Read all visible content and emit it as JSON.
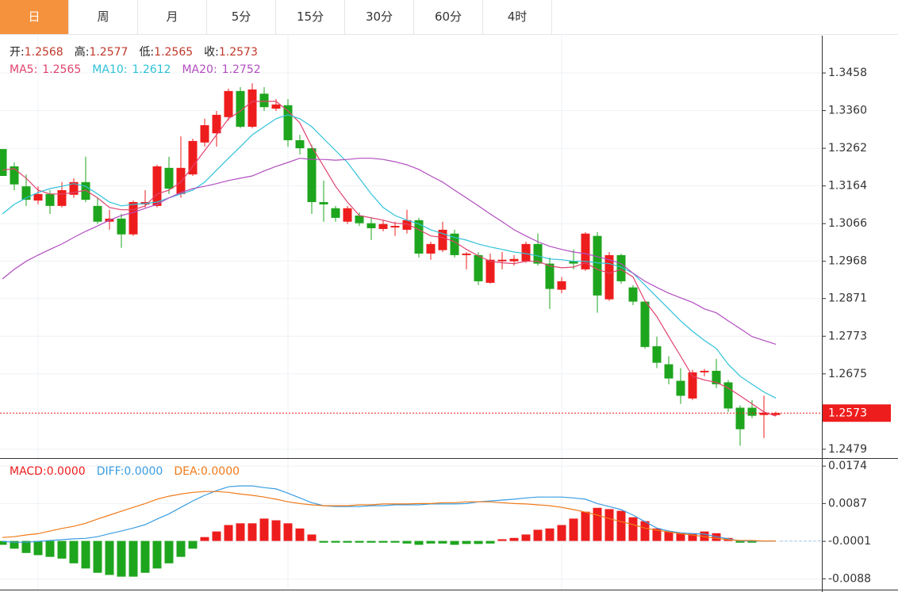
{
  "tabs": [
    "日",
    "周",
    "月",
    "5分",
    "15分",
    "30分",
    "60分",
    "4时"
  ],
  "active_tab": 0,
  "ohlc_labels": [
    "开:",
    "高:",
    "低:",
    "收:"
  ],
  "chart_data": [
    {
      "type": "candlestick",
      "categories": [
        null,
        null,
        null,
        null,
        null,
        null,
        null,
        null,
        null,
        null,
        null,
        null,
        null,
        null,
        null,
        null,
        null,
        null,
        null,
        null,
        null,
        null,
        null,
        null,
        null,
        null,
        null,
        null,
        null,
        null,
        null,
        null,
        null,
        null,
        null,
        null,
        null,
        null,
        null,
        null,
        null,
        null,
        null,
        null,
        null,
        null,
        null,
        null,
        null,
        null,
        null,
        null,
        null,
        null,
        null,
        null,
        null,
        null,
        null,
        null,
        null,
        null,
        null,
        null,
        null,
        null
      ],
      "open": [
        1.326,
        1.3215,
        1.3163,
        1.3126,
        1.3143,
        1.3112,
        1.3141,
        1.3174,
        1.3112,
        1.3071,
        1.3079,
        1.3038,
        1.3116,
        1.3112,
        1.3211,
        1.3143,
        1.3194,
        1.3277,
        1.3301,
        1.3343,
        1.3411,
        1.3318,
        1.3404,
        1.3365,
        1.3374,
        1.3283,
        1.3262,
        1.3122,
        1.3106,
        1.3071,
        1.3087,
        1.3067,
        1.3052,
        1.3056,
        1.305,
        1.3075,
        1.2988,
        1.2997,
        1.304,
        1.2984,
        1.2984,
        1.2912,
        1.2968,
        1.2968,
        1.2968,
        1.3013,
        1.2962,
        1.2894,
        1.2968,
        1.2947,
        1.3034,
        1.2869,
        1.2984,
        1.29,
        1.2863,
        1.2747,
        1.27,
        1.2657,
        1.2611,
        1.2679,
        1.2683,
        1.2653,
        1.2587,
        1.2587,
        1.2568,
        1.2568
      ],
      "high": [
        1.326,
        1.3225,
        1.3194,
        1.3163,
        1.3153,
        1.3174,
        1.3184,
        1.324,
        1.3133,
        1.3102,
        1.3091,
        1.3126,
        1.3153,
        1.3219,
        1.324,
        1.3293,
        1.3287,
        1.3339,
        1.3359,
        1.3417,
        1.3421,
        1.3431,
        1.3421,
        1.339,
        1.339,
        1.3297,
        1.3271,
        1.3178,
        1.3112,
        1.3112,
        1.3095,
        1.3081,
        1.3075,
        1.3071,
        1.3102,
        1.3081,
        1.3019,
        1.3071,
        1.305,
        1.2992,
        1.2992,
        1.2988,
        1.2992,
        1.2984,
        1.3019,
        1.304,
        1.2978,
        1.2927,
        1.2999,
        1.3044,
        1.3044,
        1.2992,
        1.2988,
        1.2906,
        1.2865,
        1.2772,
        1.2721,
        1.269,
        1.2686,
        1.2688,
        1.2714,
        1.2659,
        1.2593,
        1.2607,
        1.2618,
        1.2577
      ],
      "low": [
        1.319,
        1.3153,
        1.3112,
        1.3116,
        1.3091,
        1.3108,
        1.3133,
        1.3122,
        1.3065,
        1.305,
        1.3003,
        1.3034,
        1.3108,
        1.3108,
        1.3143,
        1.3133,
        1.319,
        1.3266,
        1.3266,
        1.3334,
        1.3314,
        1.3314,
        1.3359,
        1.3359,
        1.3266,
        1.3246,
        1.3091,
        1.3071,
        1.3071,
        1.3065,
        1.306,
        1.3023,
        1.3046,
        1.3034,
        1.304,
        1.2978,
        1.2972,
        1.2992,
        1.2978,
        1.2947,
        1.2906,
        1.291,
        1.2947,
        1.2957,
        1.2964,
        1.2957,
        1.2844,
        1.2885,
        1.2947,
        1.2943,
        1.2834,
        1.2865,
        1.291,
        1.2854,
        1.2741,
        1.269,
        1.2648,
        1.2597,
        1.2607,
        1.2669,
        1.2638,
        1.2576,
        1.2488,
        1.256,
        1.2508,
        1.2565
      ],
      "close": [
        1.319,
        1.3168,
        1.3128,
        1.3143,
        1.3112,
        1.3153,
        1.3174,
        1.3128,
        1.3071,
        1.3079,
        1.3038,
        1.3122,
        1.3122,
        1.3215,
        1.3157,
        1.3211,
        1.3281,
        1.3322,
        1.3349,
        1.3411,
        1.3318,
        1.3415,
        1.3369,
        1.3376,
        1.3283,
        1.3262,
        1.3122,
        1.3116,
        1.3081,
        1.3106,
        1.3067,
        1.3054,
        1.3065,
        1.306,
        1.3075,
        1.2988,
        1.3013,
        1.305,
        1.2984,
        1.2988,
        1.2916,
        1.2972,
        1.2972,
        1.2974,
        1.3013,
        1.2962,
        1.2896,
        1.2916,
        1.2962,
        1.304,
        1.2879,
        1.2984,
        1.2916,
        1.2863,
        1.2745,
        1.2704,
        1.2663,
        1.2618,
        1.2679,
        1.2683,
        1.2648,
        1.2585,
        1.2531,
        1.2566,
        1.2574,
        1.2573
      ],
      "up_color": "#ee1d1d",
      "down_color": "#1ea51e",
      "series": [
        {
          "name": "MA5:",
          "color": "#e0436e",
          "values": [
            1.3205,
            1.3209,
            1.3184,
            1.3153,
            1.3143,
            1.3143,
            1.3147,
            1.3153,
            1.3133,
            1.3108,
            1.3102,
            1.3102,
            1.3112,
            1.3143,
            1.3153,
            1.3174,
            1.3215,
            1.3256,
            1.3297,
            1.3339,
            1.3359,
            1.3384,
            1.3384,
            1.3384,
            1.3359,
            1.3328,
            1.3266,
            1.3215,
            1.3163,
            1.3122,
            1.3087,
            1.3081,
            1.3075,
            1.3067,
            1.3065,
            1.305,
            1.3034,
            1.303,
            1.3019,
            1.2999,
            1.2982,
            1.2968,
            1.2964,
            1.2962,
            1.2968,
            1.2968,
            1.2956,
            1.2951,
            1.2953,
            1.2964,
            1.2947,
            1.2937,
            1.2947,
            1.2927,
            1.2865,
            1.2824,
            1.2772,
            1.2721,
            1.2669,
            1.2659,
            1.2653,
            1.2638,
            1.2618,
            1.2597,
            1.2576,
            1.2565
          ]
        },
        {
          "name": "MA10:",
          "color": "#2fc2d8",
          "values": [
            1.3091,
            1.3116,
            1.3133,
            1.3147,
            1.3157,
            1.3163,
            1.317,
            1.3163,
            1.3143,
            1.3122,
            1.3112,
            1.3116,
            1.3118,
            1.3122,
            1.3133,
            1.3143,
            1.3153,
            1.3174,
            1.3205,
            1.3236,
            1.3266,
            1.3297,
            1.3318,
            1.3339,
            1.3349,
            1.3339,
            1.3318,
            1.3287,
            1.3256,
            1.3225,
            1.3184,
            1.3143,
            1.3108,
            1.3087,
            1.3075,
            1.3065,
            1.305,
            1.304,
            1.303,
            1.3023,
            1.3013,
            1.3005,
            1.2999,
            1.2992,
            1.2988,
            1.2982,
            1.2974,
            1.2972,
            1.2968,
            1.2968,
            1.2964,
            1.2962,
            1.2953,
            1.2937,
            1.2906,
            1.2875,
            1.2844,
            1.2813,
            1.2786,
            1.2762,
            1.2741,
            1.27,
            1.2669,
            1.2648,
            1.2628,
            1.2612
          ]
        },
        {
          "name": "MA20:",
          "color": "#b24ec0",
          "values": [
            1.2922,
            1.2947,
            1.2968,
            1.2984,
            1.2999,
            1.3013,
            1.303,
            1.3046,
            1.306,
            1.3075,
            1.3087,
            1.3095,
            1.3106,
            1.3116,
            1.3133,
            1.3147,
            1.3157,
            1.3163,
            1.317,
            1.3178,
            1.3184,
            1.319,
            1.3203,
            1.3215,
            1.3225,
            1.3236,
            1.3233,
            1.3233,
            1.3231,
            1.3233,
            1.3236,
            1.3236,
            1.3233,
            1.3227,
            1.3219,
            1.3207,
            1.319,
            1.3174,
            1.3153,
            1.3133,
            1.3112,
            1.3091,
            1.3071,
            1.305,
            1.3034,
            1.3019,
            1.3007,
            1.2999,
            1.2992,
            1.2988,
            1.298,
            1.2972,
            1.2962,
            1.2937,
            1.2916,
            1.29,
            1.2885,
            1.2873,
            1.2861,
            1.2844,
            1.2834,
            1.2813,
            1.2793,
            1.2772,
            1.2762,
            1.2752
          ]
        }
      ],
      "ylim": [
        1.2456,
        1.3555
      ],
      "yticks": [
        1.3458,
        {
          "value": 1.336,
          "label": "1.3360"
        },
        1.3262,
        1.3164,
        1.3066,
        1.2968,
        1.2871,
        1.2773,
        1.2675,
        1.2479
      ],
      "grid": true,
      "last_price_line": true
    },
    {
      "type": "macd",
      "categories": [
        null,
        null,
        null,
        null,
        null,
        null,
        null,
        null,
        null,
        null,
        null,
        null,
        null,
        null,
        null,
        null,
        null,
        null,
        null,
        null,
        null,
        null,
        null,
        null,
        null,
        null,
        null,
        null,
        null,
        null,
        null,
        null,
        null,
        null,
        null,
        null,
        null,
        null,
        null,
        null,
        null,
        null,
        null,
        null,
        null,
        null,
        null,
        null,
        null,
        null,
        null,
        null,
        null,
        null,
        null,
        null,
        null,
        null,
        null,
        null,
        null,
        null,
        null,
        null,
        null,
        null
      ],
      "histogram": {
        "name": "MACD:",
        "up_color": "#ee1d1d",
        "down_color": "#1ea51e",
        "current": {
          "value": 0,
          "label": "0.0000"
        },
        "values": [
          -0.0009,
          -0.0018,
          -0.0028,
          -0.0033,
          -0.0037,
          -0.0041,
          -0.0052,
          -0.0064,
          -0.0074,
          -0.0079,
          -0.0083,
          -0.0083,
          -0.0074,
          -0.0064,
          -0.0052,
          -0.0037,
          -0.0018,
          0.0009,
          0.0022,
          0.0037,
          0.0041,
          0.0041,
          0.0052,
          0.0048,
          0.0041,
          0.0029,
          0.0015,
          -0.0004,
          -0.0004,
          -0.0004,
          -0.0004,
          -0.0004,
          -0.0004,
          -0.0004,
          -0.0006,
          -0.0009,
          -0.0006,
          -0.0006,
          -0.0009,
          -0.0007,
          -0.0007,
          -0.0006,
          0.0004,
          0.0007,
          0.0015,
          0.0026,
          0.0029,
          0.0037,
          0.0052,
          0.0068,
          0.0077,
          0.0074,
          0.007,
          0.0055,
          0.0046,
          0.0029,
          0.0022,
          0.0018,
          0.0018,
          0.0022,
          0.0018,
          0.0007,
          -0.0004,
          -0.0004,
          0,
          0
        ]
      },
      "series": [
        {
          "name": "DIFF:",
          "color": "#3a9de2",
          "current": {
            "value": 0,
            "label": "0.0000"
          },
          "values": [
            -0.0001,
            -0.0003,
            -0.0003,
            -0.0001,
            0.0001,
            0.0003,
            0.0005,
            0.0006,
            0.001,
            0.0017,
            0.0023,
            0.003,
            0.0038,
            0.0051,
            0.0063,
            0.0078,
            0.0093,
            0.0106,
            0.0117,
            0.0126,
            0.0128,
            0.0128,
            0.0124,
            0.0121,
            0.0111,
            0.01,
            0.0089,
            0.0082,
            0.008,
            0.008,
            0.008,
            0.0082,
            0.0082,
            0.0084,
            0.0084,
            0.0084,
            0.0086,
            0.0086,
            0.0086,
            0.0087,
            0.0091,
            0.0093,
            0.0095,
            0.0097,
            0.01,
            0.0102,
            0.0102,
            0.0102,
            0.01,
            0.0097,
            0.0087,
            0.008,
            0.0073,
            0.006,
            0.0045,
            0.003,
            0.0023,
            0.0019,
            0.0017,
            0.0016,
            0.001,
            0.0005,
            0,
            0,
            0,
            0
          ]
        },
        {
          "name": "DEA:",
          "color": "#f07a1a",
          "current": {
            "value": 0,
            "label": "0.0000"
          },
          "values": [
            0.0008,
            0.001,
            0.0014,
            0.0017,
            0.0023,
            0.0029,
            0.0034,
            0.0041,
            0.0051,
            0.006,
            0.0069,
            0.0078,
            0.0087,
            0.0097,
            0.0104,
            0.0109,
            0.0113,
            0.0115,
            0.0115,
            0.0113,
            0.0109,
            0.0106,
            0.0102,
            0.0097,
            0.0091,
            0.0087,
            0.0084,
            0.0082,
            0.0082,
            0.0082,
            0.0084,
            0.0084,
            0.0086,
            0.0086,
            0.0086,
            0.0087,
            0.0087,
            0.0089,
            0.0089,
            0.0091,
            0.0091,
            0.0091,
            0.0089,
            0.0087,
            0.0086,
            0.0084,
            0.0082,
            0.0078,
            0.0073,
            0.0067,
            0.006,
            0.0052,
            0.0045,
            0.0038,
            0.003,
            0.0025,
            0.0021,
            0.0017,
            0.0014,
            0.001,
            0.0006,
            0.0003,
            0.0001,
            0.0001,
            0,
            0
          ]
        }
      ],
      "ylim": [
        -0.0115,
        0.0189
      ],
      "yticks": [
        0.0174,
        0.0087,
        -0.0001,
        -0.0088
      ],
      "grid": true
    }
  ]
}
